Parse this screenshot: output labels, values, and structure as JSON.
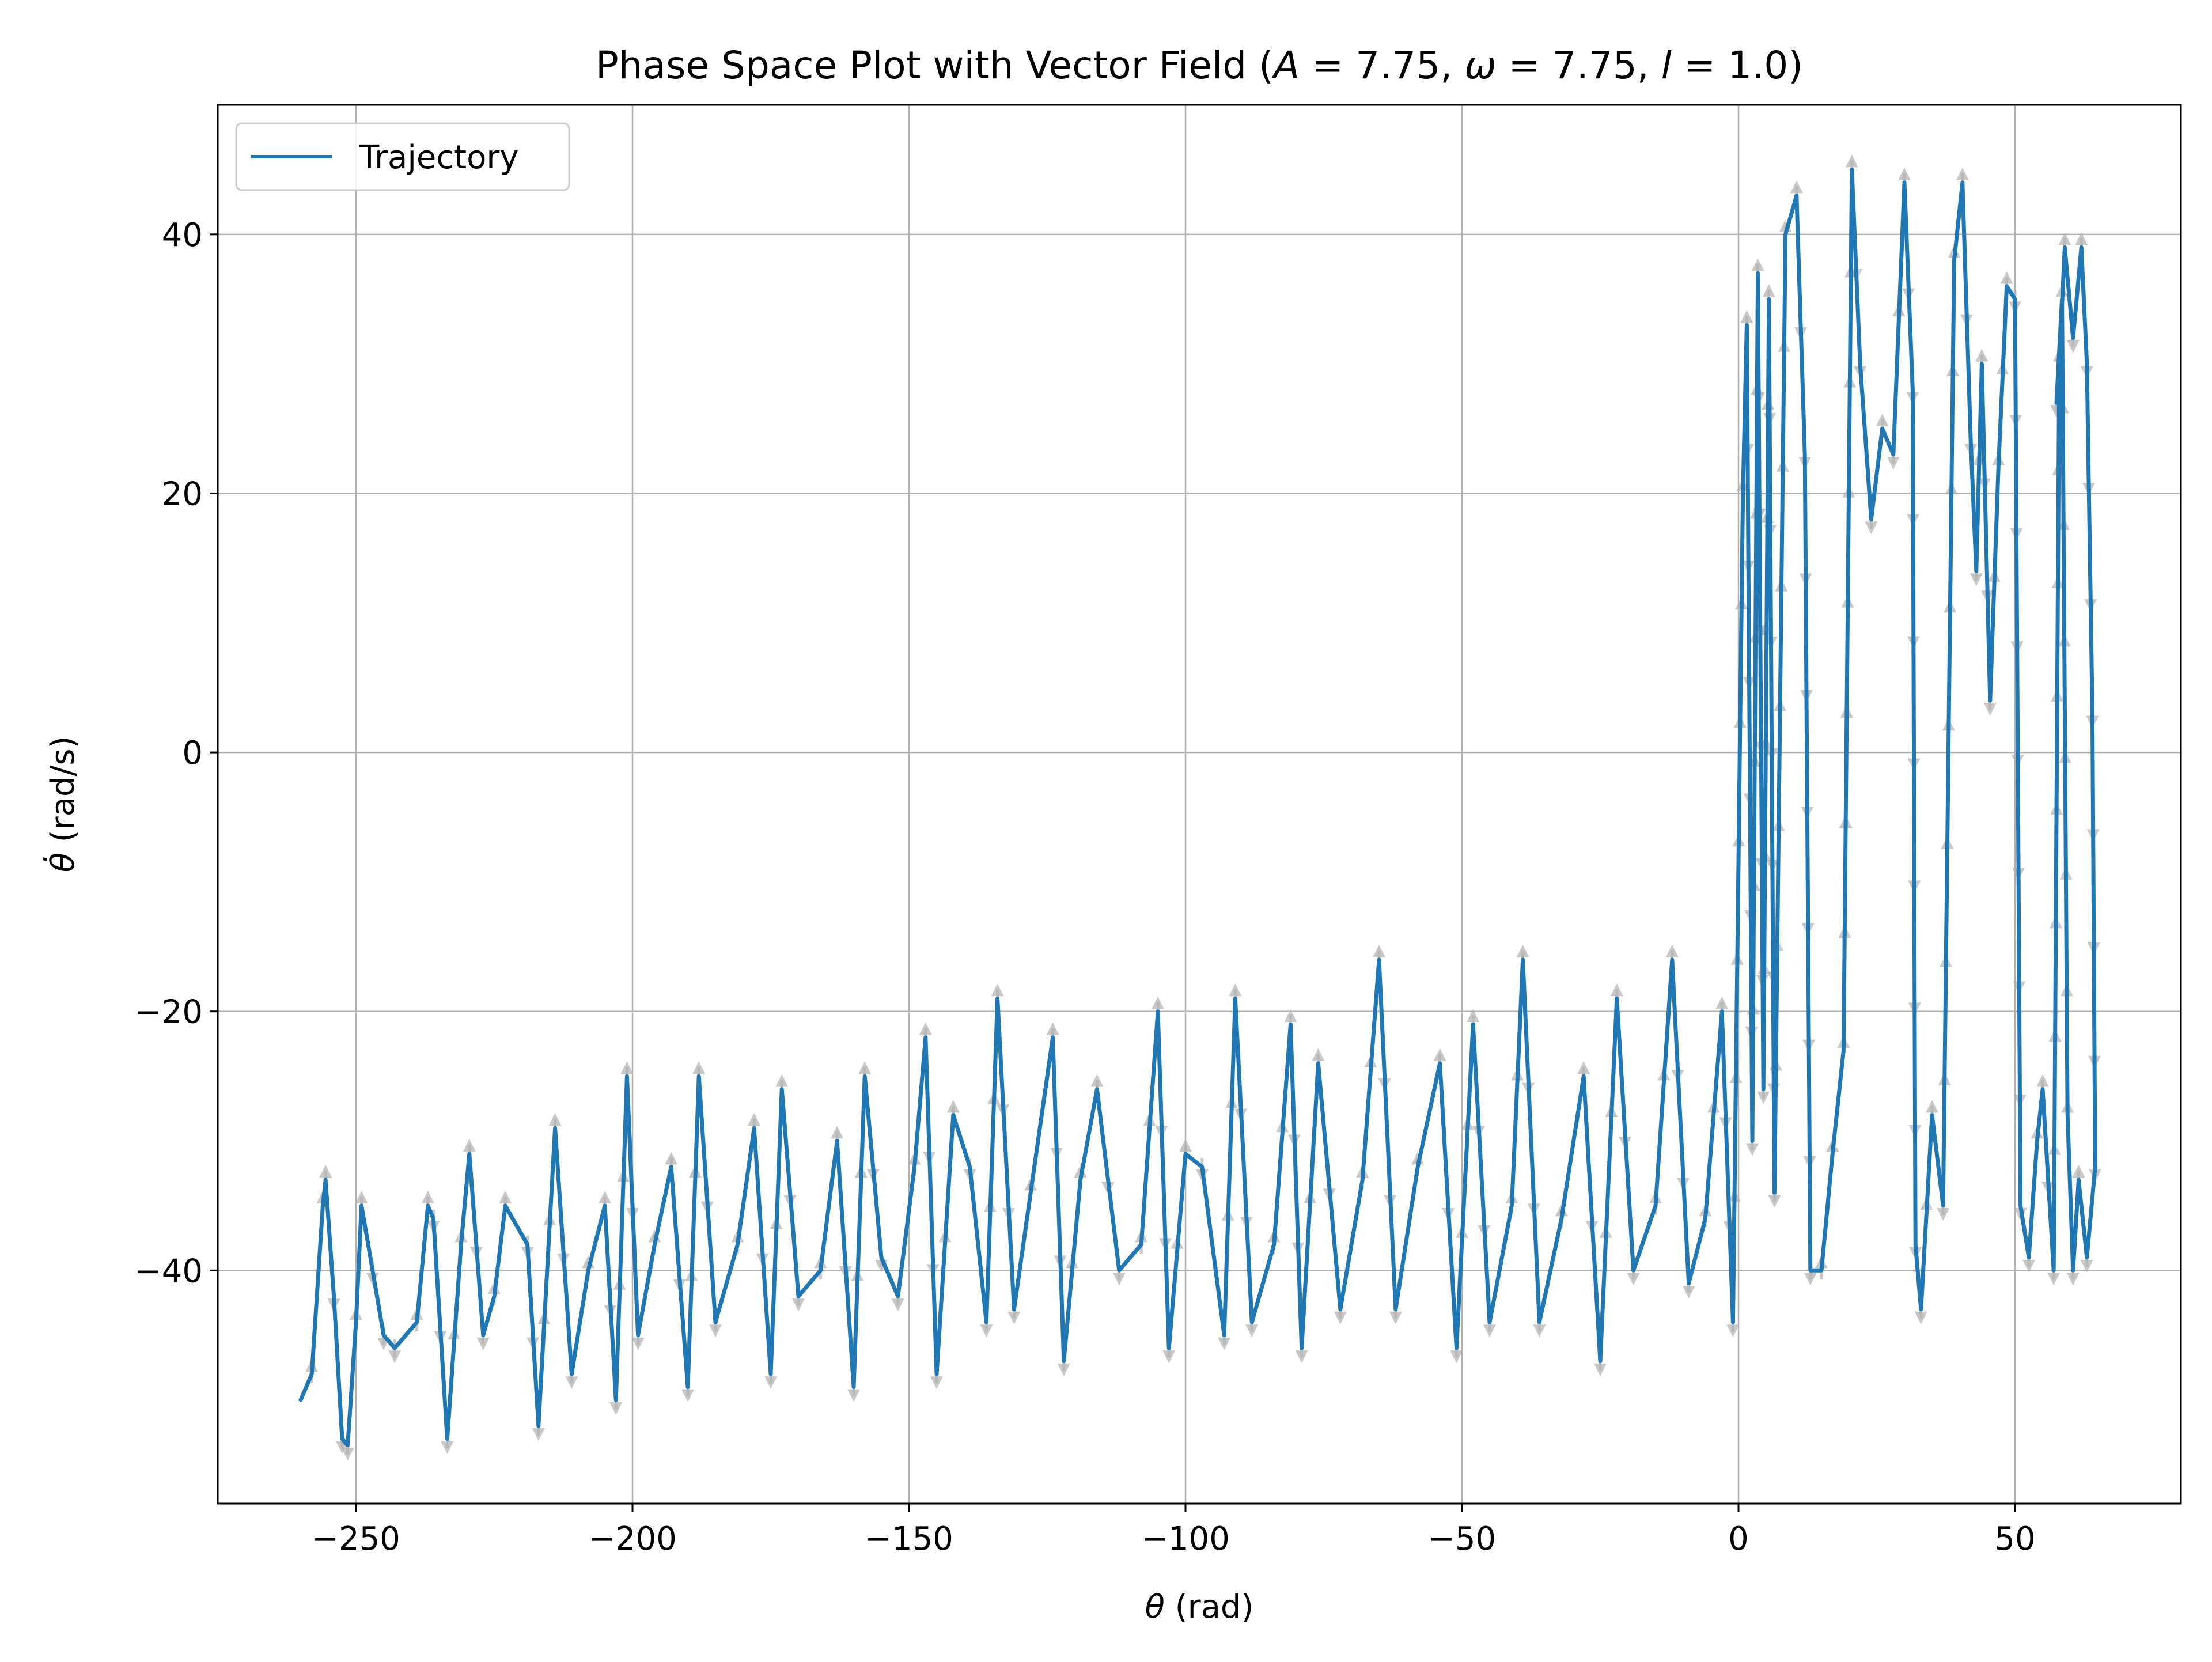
{
  "chart_data": {
    "type": "line",
    "title": "Phase Space Plot with Vector Field (A = 7.75, ω = 7.75, l = 1.0)",
    "title_parts": [
      "Phase Space Plot with Vector Field (",
      "A",
      " = 7.75, ",
      "ω",
      " = 7.75, ",
      "l",
      " = 1.0)"
    ],
    "xlabel_parts": [
      "θ",
      " (rad)"
    ],
    "ylabel_parts": [
      "θ̇",
      " (rad/s)"
    ],
    "xlim": [
      -275,
      80
    ],
    "ylim": [
      -58,
      50
    ],
    "xticks": [
      -250,
      -200,
      -150,
      -100,
      -50,
      0,
      50
    ],
    "xtick_labels": [
      "−250",
      "−200",
      "−150",
      "−100",
      "−50",
      "0",
      "50"
    ],
    "yticks": [
      -40,
      -20,
      0,
      20,
      40
    ],
    "ytick_labels": [
      "−40",
      "−20",
      "0",
      "20",
      "40"
    ],
    "grid": true,
    "legend": {
      "position": "top-left",
      "entries": [
        "Trajectory"
      ]
    },
    "colors": {
      "trajectory": "#1f77b4",
      "vector_field": "#b0b0b0",
      "grid": "#b0b0b0"
    },
    "series": [
      {
        "name": "Trajectory",
        "model": "forced pendulum trajectory, θ'' = −(g/l)·sin θ + A·cos(ωt), drifting from θ ≈ −260 to θ ≈ 65, ending in a rotating band between θ ≈ 0 and θ ≈ 65",
        "params": {
          "A": 7.75,
          "omega": 7.75,
          "l": 1.0
        },
        "start": [
          -260,
          -50
        ],
        "waypoints": [
          [
            -260,
            -50
          ],
          [
            -258,
            -48
          ],
          [
            -256,
            -35
          ],
          [
            -255.5,
            -33
          ],
          [
            -254,
            -42
          ],
          [
            -252.5,
            -53
          ],
          [
            -251.5,
            -53.5
          ],
          [
            -250,
            -44
          ],
          [
            -249,
            -35
          ],
          [
            -247,
            -40
          ],
          [
            -245,
            -45
          ],
          [
            -243,
            -46
          ],
          [
            -239,
            -44
          ],
          [
            -237,
            -35
          ],
          [
            -236,
            -36
          ],
          [
            -233.5,
            -53
          ],
          [
            -231,
            -38
          ],
          [
            -229.5,
            -31
          ],
          [
            -227,
            -45
          ],
          [
            -225,
            -42
          ],
          [
            -223,
            -35
          ],
          [
            -219,
            -38
          ],
          [
            -217,
            -52
          ],
          [
            -214,
            -29
          ],
          [
            -211,
            -48
          ],
          [
            -208,
            -40
          ],
          [
            -205,
            -35
          ],
          [
            -203,
            -50
          ],
          [
            -201,
            -25
          ],
          [
            -199,
            -45
          ],
          [
            -196,
            -38
          ],
          [
            -193,
            -32
          ],
          [
            -190,
            -49
          ],
          [
            -188,
            -25
          ],
          [
            -185,
            -44
          ],
          [
            -181,
            -38
          ],
          [
            -178,
            -29
          ],
          [
            -175,
            -48
          ],
          [
            -173,
            -26
          ],
          [
            -170,
            -42
          ],
          [
            -166,
            -40
          ],
          [
            -163,
            -30
          ],
          [
            -160,
            -49
          ],
          [
            -158,
            -25
          ],
          [
            -155,
            -39
          ],
          [
            -152,
            -42
          ],
          [
            -149,
            -32
          ],
          [
            -147,
            -22
          ],
          [
            -145,
            -48
          ],
          [
            -142,
            -28
          ],
          [
            -139,
            -32
          ],
          [
            -136,
            -44
          ],
          [
            -134,
            -19
          ],
          [
            -131,
            -43
          ],
          [
            -128,
            -34
          ],
          [
            -124,
            -22
          ],
          [
            -122,
            -47
          ],
          [
            -119,
            -33
          ],
          [
            -116,
            -26
          ],
          [
            -112,
            -40
          ],
          [
            -108,
            -38
          ],
          [
            -105,
            -20
          ],
          [
            -103,
            -46
          ],
          [
            -100,
            -31
          ],
          [
            -97,
            -32
          ],
          [
            -93,
            -45
          ],
          [
            -91,
            -19
          ],
          [
            -88,
            -44
          ],
          [
            -84,
            -38
          ],
          [
            -81,
            -21
          ],
          [
            -79,
            -46
          ],
          [
            -76,
            -24
          ],
          [
            -72,
            -43
          ],
          [
            -68,
            -33
          ],
          [
            -65,
            -16
          ],
          [
            -62,
            -43
          ],
          [
            -58,
            -32
          ],
          [
            -54,
            -24
          ],
          [
            -51,
            -46
          ],
          [
            -48,
            -21
          ],
          [
            -45,
            -44
          ],
          [
            -41,
            -35
          ],
          [
            -39,
            -16
          ],
          [
            -36,
            -44
          ],
          [
            -32,
            -36
          ],
          [
            -28,
            -25
          ],
          [
            -25,
            -47
          ],
          [
            -22,
            -19
          ],
          [
            -19,
            -40
          ],
          [
            -15,
            -35
          ],
          [
            -12,
            -16
          ],
          [
            -9,
            -41
          ],
          [
            -6,
            -36
          ],
          [
            -3,
            -20
          ],
          [
            -1,
            -44
          ],
          [
            0.8,
            20
          ],
          [
            1.5,
            33
          ],
          [
            2.5,
            -30
          ],
          [
            3.5,
            37
          ],
          [
            4.5,
            -26
          ],
          [
            5.5,
            35
          ],
          [
            6.5,
            -34
          ],
          [
            8.5,
            40
          ],
          [
            10.5,
            43
          ],
          [
            12,
            23
          ],
          [
            13,
            -40
          ],
          [
            15,
            -40
          ],
          [
            17,
            -31
          ],
          [
            19,
            -23
          ],
          [
            20.5,
            45
          ],
          [
            22,
            30
          ],
          [
            24,
            18
          ],
          [
            26,
            25
          ],
          [
            28,
            23
          ],
          [
            30,
            44
          ],
          [
            31.5,
            28
          ],
          [
            32,
            -38
          ],
          [
            33,
            -43
          ],
          [
            35,
            -28
          ],
          [
            37,
            -35
          ],
          [
            39,
            38
          ],
          [
            40.5,
            44
          ],
          [
            42,
            24
          ],
          [
            43,
            14
          ],
          [
            44,
            30
          ],
          [
            45.5,
            4
          ],
          [
            47,
            22
          ],
          [
            48.5,
            36
          ],
          [
            50,
            35
          ],
          [
            51,
            -35
          ],
          [
            52.5,
            -39
          ],
          [
            54,
            -30
          ],
          [
            55,
            -26
          ],
          [
            57,
            -40
          ],
          [
            58,
            30
          ],
          [
            59,
            39
          ],
          [
            60.5,
            32
          ],
          [
            62,
            39
          ],
          [
            63,
            30
          ],
          [
            64,
            3
          ],
          [
            64.5,
            -32
          ],
          [
            63,
            -39
          ],
          [
            61.5,
            -33
          ],
          [
            60.5,
            -40
          ],
          [
            59.5,
            -28
          ],
          [
            58.5,
            35
          ],
          [
            57.5,
            27
          ]
        ]
      }
    ]
  }
}
